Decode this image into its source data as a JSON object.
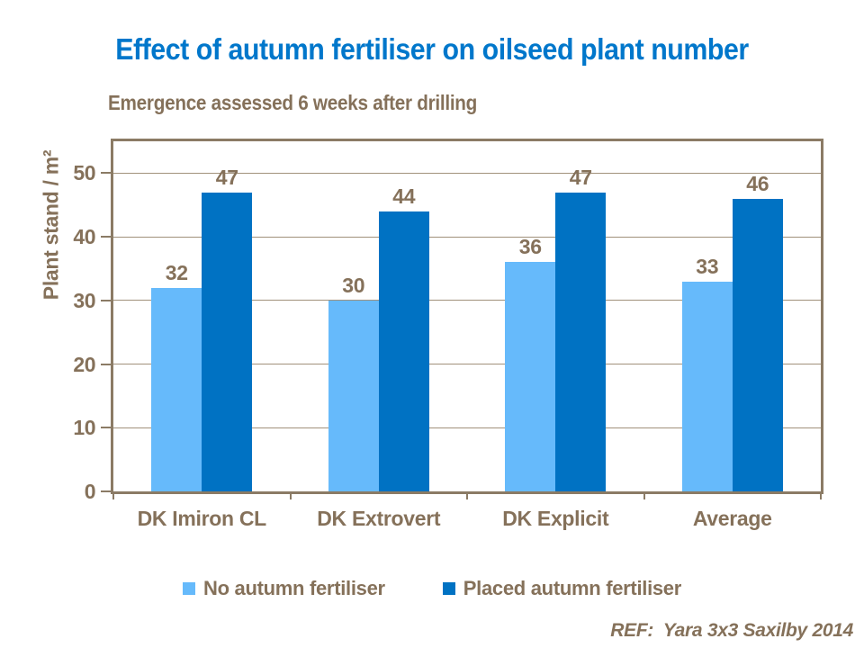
{
  "slide": {
    "title": "Effect of autumn fertiliser on oilseed plant number",
    "subtitle": "Emergence assessed 6 weeks after drilling",
    "reference": "REF:  Yara 3x3 Saxilby 2014"
  },
  "colors": {
    "title_blue": "#0077CB",
    "text_brown": "#85715A",
    "gridline": "#A1917B",
    "plot_border": "#8B7B65",
    "series_light_blue": "#66BAFB",
    "series_dark_blue": "#0072C3"
  },
  "chart_data": {
    "type": "bar",
    "title": "Effect of autumn fertiliser on oilseed plant number",
    "subtitle": "Emergence assessed 6 weeks after drilling",
    "categories": [
      "DK Imiron CL",
      "DK Extrovert",
      "DK Explicit",
      "Average"
    ],
    "series": [
      {
        "name": "No autumn fertiliser",
        "color": "#66BAFB",
        "values": [
          32,
          30,
          36,
          33
        ]
      },
      {
        "name": "Placed autumn fertiliser",
        "color": "#0072C3",
        "values": [
          47,
          44,
          47,
          46
        ]
      }
    ],
    "ylabel": "Plant stand / m²",
    "xlabel": "",
    "yticks": [
      0,
      10,
      20,
      30,
      40,
      50
    ],
    "ylim": [
      0,
      55
    ],
    "grid": true,
    "data_labels": true,
    "legend_position": "bottom"
  }
}
